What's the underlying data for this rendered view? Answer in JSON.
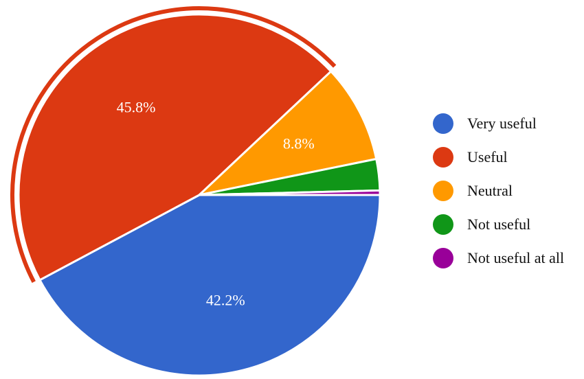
{
  "chart_data": {
    "type": "pie",
    "title": "",
    "legend_position": "right",
    "highlighted_slice": "Useful",
    "slices": [
      {
        "name": "Very useful",
        "value": 42.2,
        "label": "42.2%",
        "color": "#3366cc"
      },
      {
        "name": "Useful",
        "value": 45.8,
        "label": "45.8%",
        "color": "#dc3912"
      },
      {
        "name": "Neutral",
        "value": 8.8,
        "label": "8.8%",
        "color": "#ff9900"
      },
      {
        "name": "Not useful",
        "value": 2.8,
        "label": "",
        "color": "#109618"
      },
      {
        "name": "Not useful at all",
        "value": 0.4,
        "label": "",
        "color": "#990099"
      }
    ]
  }
}
